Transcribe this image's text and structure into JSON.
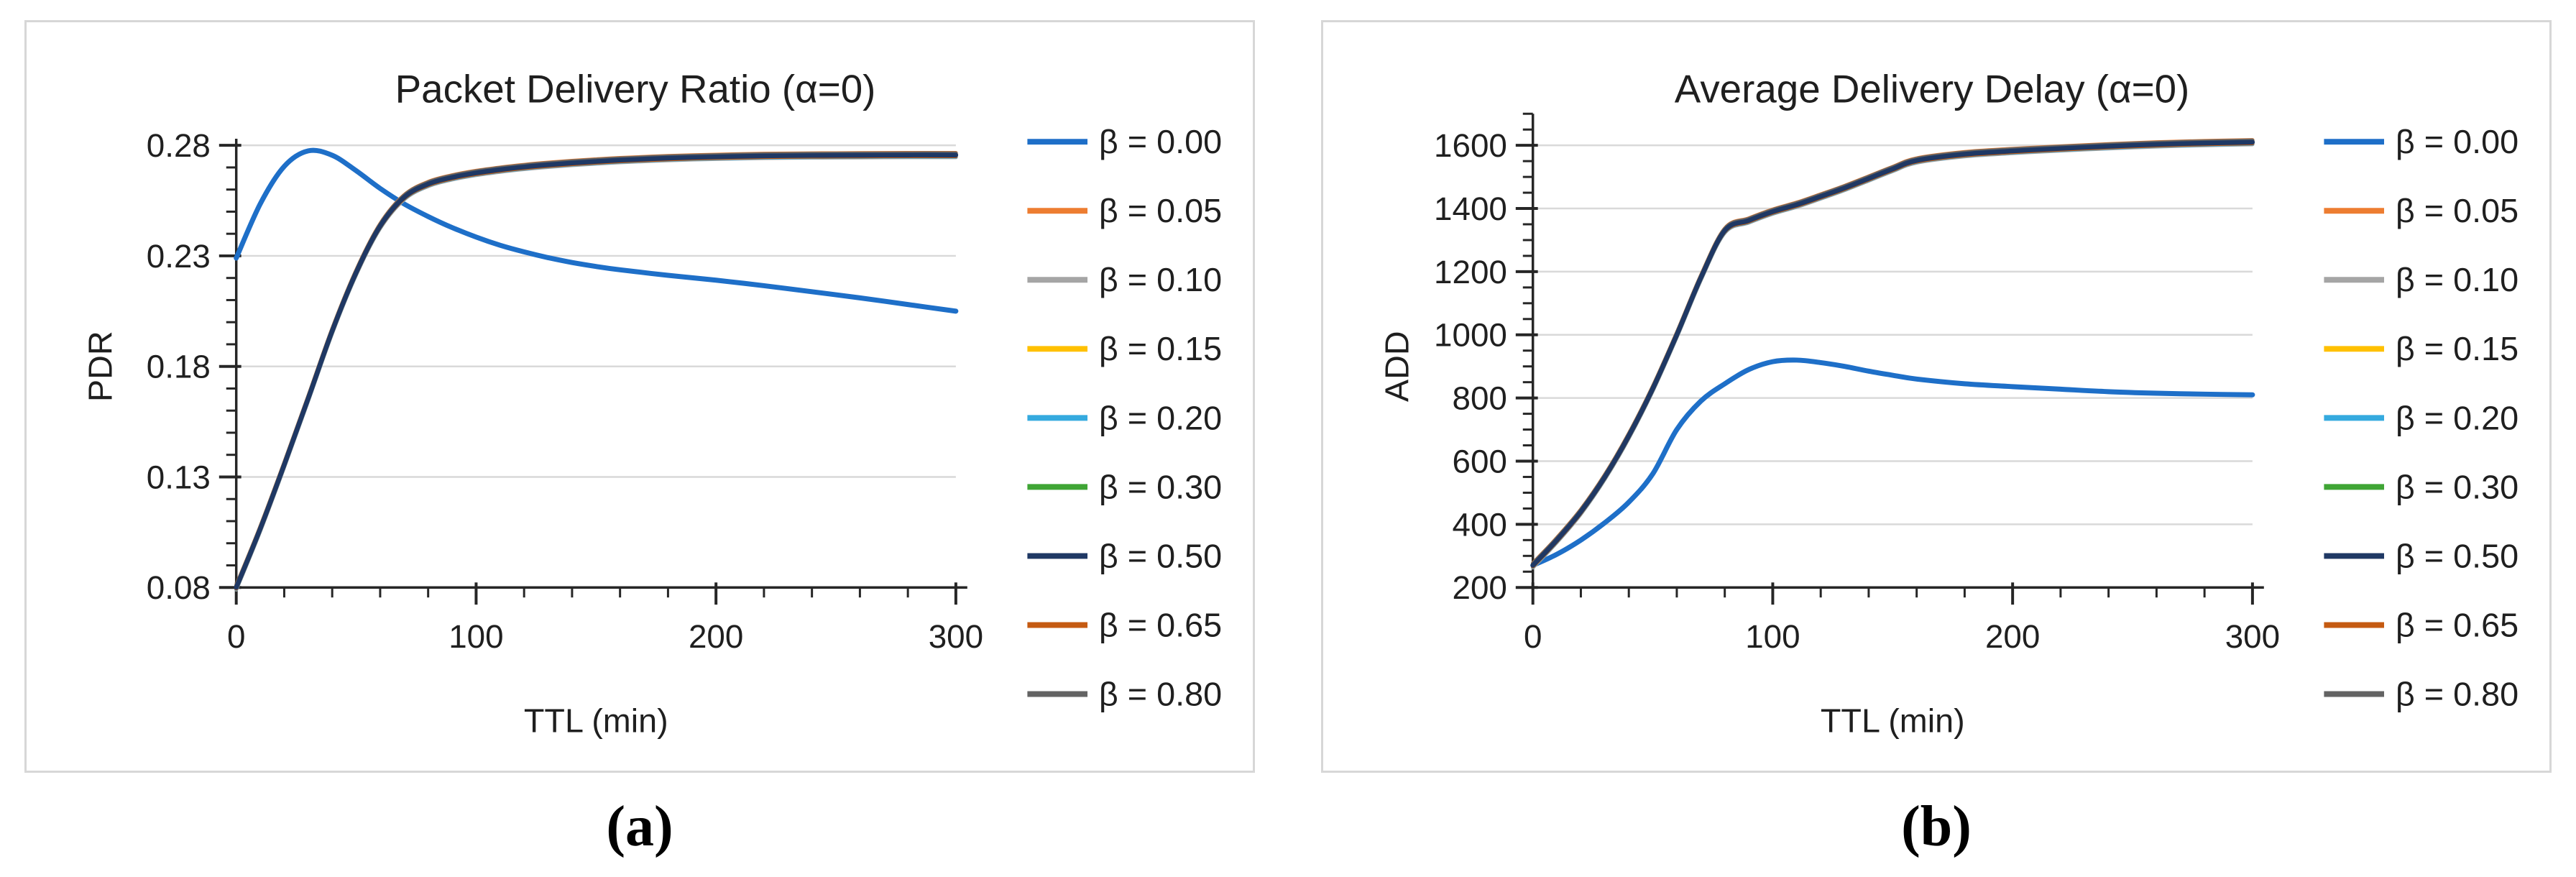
{
  "figure": {
    "panels": [
      {
        "id": "a",
        "caption": "(a)"
      },
      {
        "id": "b",
        "caption": "(b)"
      }
    ],
    "text_color": "#1f1f1f",
    "grid_color": "#d9d9d9",
    "axis_color": "#262626",
    "panel_border_color": "#d7d7d7"
  },
  "chart_data": [
    {
      "type": "line",
      "title": "Packet Delivery Ratio (α=0)",
      "xlabel": "TTL (min)",
      "ylabel": "PDR",
      "xlim": [
        0,
        300
      ],
      "x_major_ticks": [
        0,
        100,
        200,
        300
      ],
      "x_minor_step": 20,
      "ylim": [
        0.08,
        0.28
      ],
      "y_major_step": 0.05,
      "y_minor_step": 0.01,
      "y_axis_overhang": 0.003,
      "y_decimals": 2,
      "grid": "horizontal-majors",
      "legend_position": "right",
      "x": [
        0,
        10,
        20,
        30,
        40,
        50,
        60,
        70,
        80,
        90,
        100,
        110,
        120,
        130,
        140,
        150,
        160,
        180,
        200,
        220,
        240,
        260,
        280,
        300
      ],
      "bundle_values": [
        0.08,
        0.1065,
        0.1355,
        0.1655,
        0.196,
        0.2225,
        0.2435,
        0.2565,
        0.2625,
        0.2655,
        0.2675,
        0.269,
        0.2702,
        0.2712,
        0.272,
        0.2727,
        0.2733,
        0.2742,
        0.2748,
        0.2752,
        0.2754,
        0.2755,
        0.2756,
        0.2756
      ],
      "series": [
        {
          "name": "β = 0.00",
          "color": "#1E6FC8",
          "values": [
            0.229,
            0.2535,
            0.2705,
            0.2775,
            0.2755,
            0.2685,
            0.2605,
            0.2535,
            0.2478,
            0.2428,
            0.2385,
            0.2348,
            0.2318,
            0.2292,
            0.227,
            0.2252,
            0.2237,
            0.2212,
            0.219,
            0.2165,
            0.2138,
            0.211,
            0.208,
            0.205
          ]
        },
        {
          "name": "β = 0.05",
          "color": "#ED7D31",
          "values": "bundle"
        },
        {
          "name": "β = 0.10",
          "color": "#A5A5A5",
          "values": "bundle"
        },
        {
          "name": "β = 0.15",
          "color": "#FFC000",
          "values": "bundle"
        },
        {
          "name": "β = 0.20",
          "color": "#35AADF",
          "values": "bundle"
        },
        {
          "name": "β = 0.30",
          "color": "#3FA535",
          "values": "bundle"
        },
        {
          "name": "β = 0.50",
          "color": "#1F3864",
          "values": "bundle"
        },
        {
          "name": "β = 0.65",
          "color": "#C55A11",
          "values": "bundle"
        },
        {
          "name": "β = 0.80",
          "color": "#636363",
          "values": "bundle"
        }
      ]
    },
    {
      "type": "line",
      "title": "Average Delivery Delay (α=0)",
      "xlabel": "TTL (min)",
      "ylabel": "ADD",
      "xlim": [
        0,
        300
      ],
      "x_major_ticks": [
        0,
        100,
        200,
        300
      ],
      "x_minor_step": 20,
      "ylim": [
        200,
        1600
      ],
      "y_major_step": 200,
      "y_minor_step": 50,
      "y_axis_overhang": 100,
      "y_decimals": 0,
      "grid": "horizontal-majors",
      "legend_position": "right",
      "x": [
        0,
        10,
        20,
        30,
        40,
        50,
        60,
        70,
        80,
        90,
        100,
        110,
        120,
        130,
        140,
        150,
        160,
        180,
        200,
        220,
        240,
        260,
        280,
        300
      ],
      "bundle_values": [
        270,
        350,
        440,
        550,
        680,
        830,
        1000,
        1180,
        1330,
        1362,
        1390,
        1412,
        1438,
        1465,
        1495,
        1525,
        1552,
        1572,
        1582,
        1590,
        1597,
        1603,
        1607,
        1610
      ],
      "series": [
        {
          "name": "β = 0.00",
          "color": "#1E6FC8",
          "values": [
            270,
            305,
            350,
            405,
            470,
            560,
            700,
            790,
            845,
            890,
            915,
            920,
            912,
            900,
            885,
            872,
            860,
            845,
            836,
            828,
            820,
            815,
            812,
            810
          ]
        },
        {
          "name": "β = 0.05",
          "color": "#ED7D31",
          "values": "bundle"
        },
        {
          "name": "β = 0.10",
          "color": "#A5A5A5",
          "values": "bundle"
        },
        {
          "name": "β = 0.15",
          "color": "#FFC000",
          "values": "bundle"
        },
        {
          "name": "β = 0.20",
          "color": "#35AADF",
          "values": "bundle"
        },
        {
          "name": "β = 0.30",
          "color": "#3FA535",
          "values": "bundle"
        },
        {
          "name": "β = 0.50",
          "color": "#1F3864",
          "values": "bundle"
        },
        {
          "name": "β = 0.65",
          "color": "#C55A11",
          "values": "bundle"
        },
        {
          "name": "β = 0.80",
          "color": "#636363",
          "values": "bundle"
        }
      ]
    }
  ]
}
